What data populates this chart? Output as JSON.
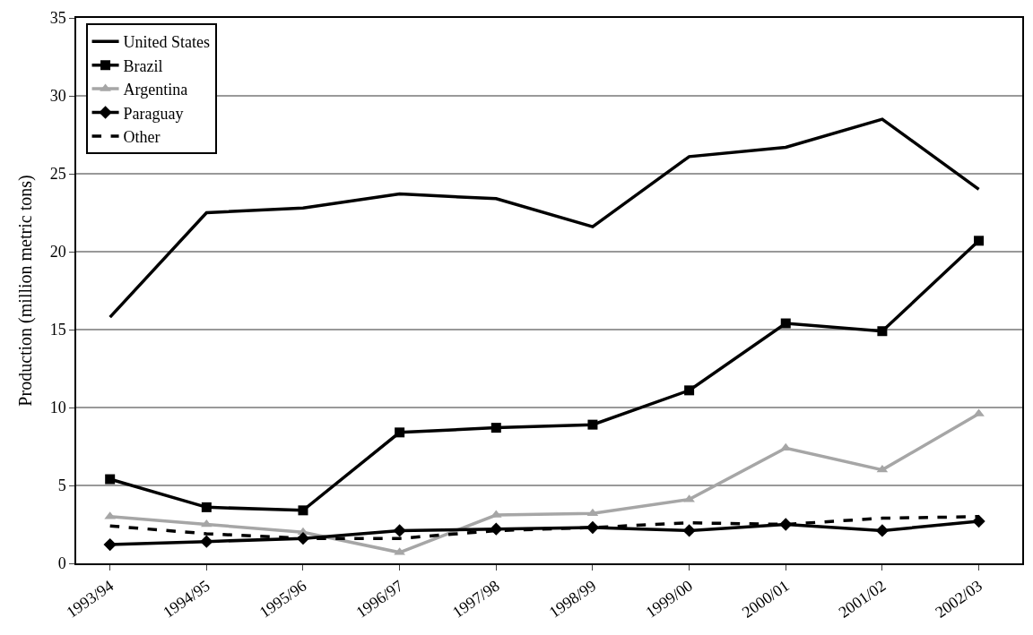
{
  "chart_data": {
    "type": "line",
    "ylabel": "Production (million metric tons)",
    "categories": [
      "1993/94",
      "1994/95",
      "1995/96",
      "1996/97",
      "1997/98",
      "1998/99",
      "1999/00",
      "2000/01",
      "2001/02",
      "2002/03"
    ],
    "series": [
      {
        "name": "United States",
        "color": "#000000",
        "marker": "none",
        "line_style": "solid",
        "values": [
          15.8,
          22.5,
          22.8,
          23.7,
          23.4,
          21.6,
          26.1,
          26.7,
          28.5,
          24.0
        ]
      },
      {
        "name": "Brazil",
        "color": "#000000",
        "marker": "square",
        "line_style": "solid",
        "values": [
          5.4,
          3.6,
          3.4,
          8.4,
          8.7,
          8.9,
          11.1,
          15.4,
          14.9,
          20.7
        ]
      },
      {
        "name": "Argentina",
        "color": "#a6a6a6",
        "marker": "triangle",
        "line_style": "solid",
        "values": [
          3.0,
          2.5,
          2.0,
          0.7,
          3.1,
          3.2,
          4.1,
          7.4,
          6.0,
          9.6
        ]
      },
      {
        "name": "Paraguay",
        "color": "#000000",
        "marker": "diamond",
        "line_style": "solid",
        "values": [
          1.2,
          1.4,
          1.6,
          2.1,
          2.2,
          2.3,
          2.1,
          2.5,
          2.1,
          2.7
        ]
      },
      {
        "name": "Other",
        "color": "#000000",
        "marker": "none",
        "line_style": "dashed",
        "values": [
          2.4,
          1.9,
          1.6,
          1.6,
          2.1,
          2.3,
          2.6,
          2.5,
          2.9,
          3.0
        ]
      }
    ],
    "ylim": [
      0,
      35
    ],
    "yticks": [
      0,
      5,
      10,
      15,
      20,
      25,
      30,
      35
    ],
    "grid": "y",
    "legend": "top left"
  }
}
